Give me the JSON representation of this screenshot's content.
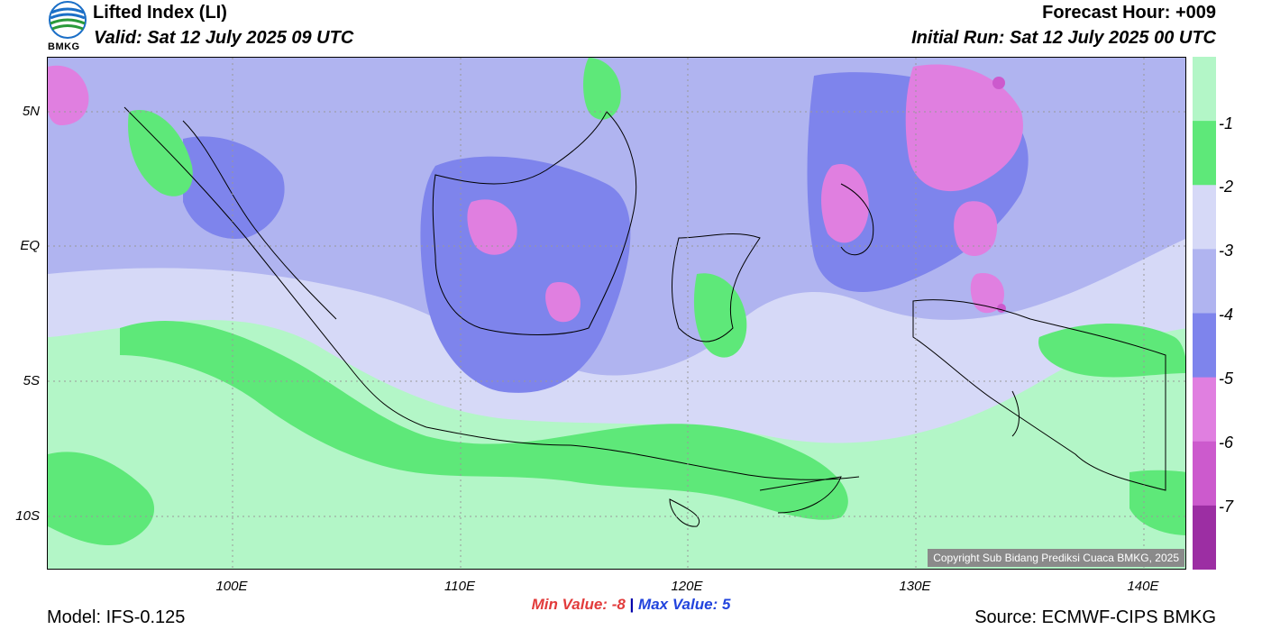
{
  "header": {
    "title": "Lifted Index (LI)",
    "valid": "Valid: Sat 12 July 2025 09 UTC",
    "forecast_hour": "Forecast Hour: +009",
    "initial_run": "Initial Run: Sat 12 July 2025 00 UTC",
    "logo_text": "BMKG"
  },
  "axes": {
    "lat_labels": [
      "5N",
      "EQ",
      "5S",
      "10S"
    ],
    "lon_labels": [
      "100E",
      "110E",
      "120E",
      "130E",
      "140E"
    ]
  },
  "colorbar": {
    "labels": [
      "-1",
      "-2",
      "-3",
      "-4",
      "-5",
      "-6",
      "-7"
    ],
    "colors": [
      "#b3f6c7",
      "#5ee879",
      "#d6d9f7",
      "#b0b4f0",
      "#7e84ec",
      "#e07fe0",
      "#cc5acd",
      "#9c2ea3"
    ]
  },
  "copyright": "Copyright Sub Bidang Prediksi Cuaca BMKG, 2025",
  "stats": {
    "min_label": "Min Value:",
    "min_value": "-8",
    "separator": "|",
    "max_label": "Max Value:",
    "max_value": "5"
  },
  "footer": {
    "model": "Model: IFS-0.125",
    "source": "Source: ECMWF-CIPS BMKG"
  }
}
